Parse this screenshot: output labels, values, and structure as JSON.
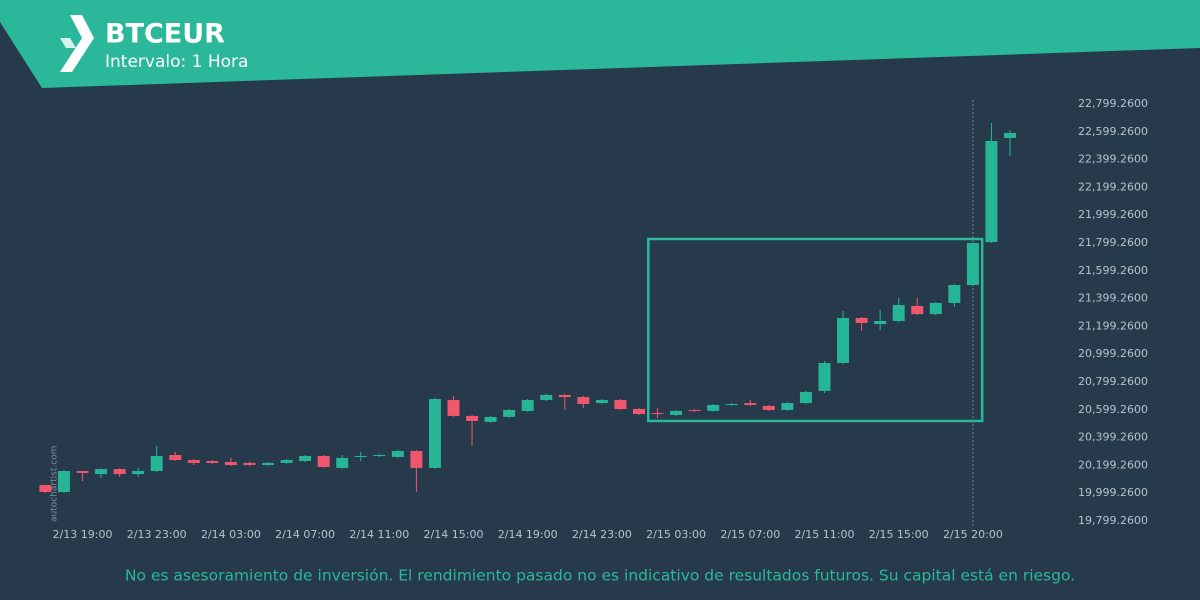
{
  "chart_data": {
    "type": "candlestick",
    "title": "BTCEUR",
    "subtitle": "Intervalo: 1 Hora",
    "watermark": "autochartist.com",
    "disclaimer": "No es asesoramiento de inversión. El rendimiento pasado no es indicativo de resultados futuros. Su capital está en riesgo.",
    "categories": [
      null,
      null,
      "2/13 19:00",
      null,
      null,
      null,
      "2/13 23:00",
      null,
      null,
      null,
      "2/14 03:00",
      null,
      null,
      null,
      "2/14 07:00",
      null,
      null,
      null,
      "2/14 11:00",
      null,
      null,
      null,
      "2/14 15:00",
      null,
      null,
      null,
      "2/14 19:00",
      null,
      null,
      null,
      "2/14 23:00",
      null,
      null,
      null,
      "2/15 03:00",
      null,
      null,
      null,
      "2/15 07:00",
      null,
      null,
      null,
      "2/15 11:00",
      null,
      null,
      null,
      "2/15 15:00",
      null,
      null,
      null,
      "2/15 20:00",
      null,
      null
    ],
    "open": [
      20058,
      20008,
      20159,
      20137,
      20173,
      20137,
      20159,
      20274,
      20238,
      20231,
      20224,
      20217,
      20202,
      20217,
      20231,
      20267,
      20181,
      20260,
      20267,
      20260,
      20303,
      20181,
      20670,
      20555,
      20512,
      20548,
      20591,
      20670,
      20706,
      20691,
      20648,
      20670,
      20605,
      20576,
      20562,
      20598,
      20591,
      20634,
      20648,
      20627,
      20598,
      20648,
      20735,
      20936,
      21260,
      21216,
      21238,
      21346,
      21288,
      21368,
      21497,
      21806,
      22555
    ],
    "high": [
      20062,
      20166,
      20162,
      20178,
      20178,
      20181,
      20339,
      20296,
      20245,
      20238,
      20253,
      20224,
      20224,
      20245,
      20274,
      20274,
      20274,
      20296,
      20281,
      20310,
      20310,
      20684,
      20699,
      20562,
      20555,
      20605,
      20677,
      20713,
      20713,
      20699,
      20677,
      20677,
      20612,
      20612,
      20598,
      20605,
      20641,
      20648,
      20670,
      20634,
      20655,
      20735,
      20950,
      21310,
      21267,
      21317,
      21404,
      21404,
      21375,
      21504,
      21806,
      22662,
      22612
    ],
    "low": [
      20000,
      20001,
      20087,
      20109,
      20116,
      20116,
      20152,
      20231,
      20202,
      20210,
      20195,
      20195,
      20195,
      20210,
      20224,
      20181,
      20174,
      20231,
      20260,
      20253,
      20008,
      20174,
      20548,
      20339,
      20505,
      20541,
      20584,
      20663,
      20598,
      20612,
      20641,
      20598,
      20562,
      20540,
      20555,
      20584,
      20584,
      20627,
      20627,
      20591,
      20591,
      20641,
      20720,
      20929,
      21166,
      21173,
      21231,
      21281,
      21281,
      21339,
      21490,
      21799,
      22425
    ],
    "close": [
      20008,
      20159,
      20145,
      20173,
      20137,
      20159,
      20267,
      20238,
      20217,
      20217,
      20202,
      20202,
      20217,
      20238,
      20267,
      20188,
      20253,
      20267,
      20274,
      20303,
      20181,
      20677,
      20555,
      20519,
      20548,
      20598,
      20670,
      20706,
      20691,
      20641,
      20670,
      20605,
      20569,
      20569,
      20591,
      20591,
      20634,
      20641,
      20634,
      20598,
      20648,
      20727,
      20936,
      21260,
      21224,
      21238,
      21353,
      21288,
      21368,
      21497,
      21799,
      22533,
      22591
    ],
    "up_color": "#26b597",
    "down_color": "#f0566e",
    "highlight_box": {
      "start": 33,
      "end": 50,
      "top": 21828,
      "bottom": 20519,
      "color": "#2bb79a"
    },
    "ylim": [
      19799.26,
      22799.26
    ],
    "yticks": [
      {
        "value": 19799.26,
        "label": "19,799.2600"
      },
      {
        "value": 19999.26,
        "label": "19,999.2600"
      },
      {
        "value": 20199.26,
        "label": "20,199.2600"
      },
      {
        "value": 20399.26,
        "label": "20,399.2600"
      },
      {
        "value": 20599.26,
        "label": "20,599.2600"
      },
      {
        "value": 20799.26,
        "label": "20,799.2600"
      },
      {
        "value": 20999.26,
        "label": "20,999.2600"
      },
      {
        "value": 21199.26,
        "label": "21,199.2600"
      },
      {
        "value": 21399.26,
        "label": "21,399.2600"
      },
      {
        "value": 21599.26,
        "label": "21,599.2600"
      },
      {
        "value": 21799.26,
        "label": "21,799.2600"
      },
      {
        "value": 21999.26,
        "label": "21,999.2600"
      },
      {
        "value": 22199.26,
        "label": "22,199.2600"
      },
      {
        "value": 22399.26,
        "label": "22,399.2600"
      },
      {
        "value": 22599.26,
        "label": "22,599.2600"
      },
      {
        "value": 22799.26,
        "label": "22,799.2600"
      }
    ],
    "grid": false
  }
}
